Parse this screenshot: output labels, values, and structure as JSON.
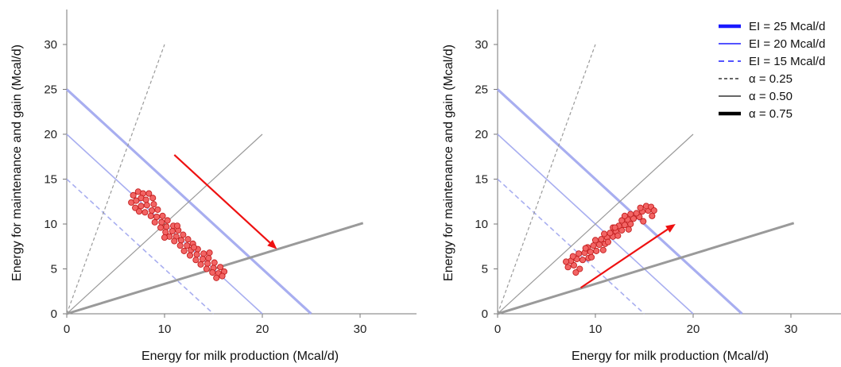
{
  "chart_data": [
    {
      "type": "scatter",
      "title": "",
      "xlabel": "Energy for milk production (Mcal/d)",
      "ylabel": "Energy for maintenance and gain (Mcal/d)",
      "xlim": [
        0,
        35
      ],
      "ylim": [
        0,
        33
      ],
      "xticks": [
        "0",
        "10",
        "20",
        "30"
      ],
      "yticks": [
        "0",
        "5",
        "10",
        "15",
        "20",
        "25",
        "30"
      ],
      "grid": false,
      "iso_energy_lines": [
        {
          "name": "EI = 25 Mcal/d",
          "intercept": 25,
          "style": "thick"
        },
        {
          "name": "EI = 20 Mcal/d",
          "intercept": 20,
          "style": "solid"
        },
        {
          "name": "EI = 15 Mcal/d",
          "intercept": 15,
          "style": "dashed"
        }
      ],
      "partition_lines": [
        {
          "name": "α = 0.25",
          "ratio": 0.25,
          "x_end": 10,
          "style": "dashed"
        },
        {
          "name": "α = 0.50",
          "ratio": 0.5,
          "x_end": 20,
          "style": "solid"
        },
        {
          "name": "α = 0.75",
          "ratio": 0.75,
          "x_end": 30.3,
          "style": "thick"
        }
      ],
      "arrow": {
        "from": [
          11,
          17.7
        ],
        "to": [
          21.5,
          7.2
        ],
        "color": "#ee1111"
      },
      "series": [
        {
          "values": [
            [
              6.8,
              13.2
            ],
            [
              7.3,
              13.6
            ],
            [
              7.8,
              13.4
            ],
            [
              8.4,
              13.4
            ],
            [
              6.6,
              12.4
            ],
            [
              7.1,
              12.6
            ],
            [
              7.6,
              12.9
            ],
            [
              8.1,
              12.7
            ],
            [
              8.8,
              12.9
            ],
            [
              7.0,
              11.8
            ],
            [
              7.6,
              12.0
            ],
            [
              8.2,
              12.1
            ],
            [
              8.9,
              12.2
            ],
            [
              7.4,
              11.4
            ],
            [
              8.0,
              11.3
            ],
            [
              8.7,
              11.5
            ],
            [
              9.3,
              11.6
            ],
            [
              8.6,
              10.9
            ],
            [
              9.2,
              10.8
            ],
            [
              9.8,
              10.9
            ],
            [
              9.0,
              10.2
            ],
            [
              9.7,
              10.2
            ],
            [
              10.3,
              10.4
            ],
            [
              9.6,
              9.6
            ],
            [
              10.2,
              9.7
            ],
            [
              10.9,
              9.8
            ],
            [
              10.1,
              9.1
            ],
            [
              10.8,
              9.2
            ],
            [
              11.4,
              9.3
            ],
            [
              10.5,
              8.6
            ],
            [
              11.2,
              8.6
            ],
            [
              11.9,
              8.8
            ],
            [
              11.0,
              8.1
            ],
            [
              11.7,
              8.2
            ],
            [
              12.4,
              8.3
            ],
            [
              11.6,
              7.6
            ],
            [
              12.3,
              7.6
            ],
            [
              12.9,
              7.8
            ],
            [
              12.0,
              7.0
            ],
            [
              12.7,
              7.1
            ],
            [
              13.4,
              7.2
            ],
            [
              12.6,
              6.5
            ],
            [
              13.3,
              6.6
            ],
            [
              14.0,
              6.7
            ],
            [
              13.2,
              6.0
            ],
            [
              13.9,
              6.1
            ],
            [
              14.5,
              6.2
            ],
            [
              13.7,
              5.5
            ],
            [
              14.4,
              5.6
            ],
            [
              15.1,
              5.7
            ],
            [
              14.3,
              5.0
            ],
            [
              15.0,
              5.1
            ],
            [
              15.7,
              5.2
            ],
            [
              14.9,
              4.6
            ],
            [
              15.5,
              4.5
            ],
            [
              16.1,
              4.7
            ],
            [
              15.3,
              4.0
            ],
            [
              15.9,
              4.2
            ],
            [
              13.0,
              7.4
            ],
            [
              14.6,
              6.8
            ],
            [
              11.3,
              9.8
            ],
            [
              10.0,
              8.5
            ]
          ]
        }
      ]
    },
    {
      "type": "scatter",
      "title": "",
      "xlabel": "Energy for milk production (Mcal/d)",
      "ylabel": "Energy for maintenance and gain (Mcal/d)",
      "xlim": [
        0,
        35
      ],
      "ylim": [
        0,
        33
      ],
      "xticks": [
        "0",
        "10",
        "20",
        "30"
      ],
      "yticks": [
        "0",
        "5",
        "10",
        "15",
        "20",
        "25",
        "30"
      ],
      "grid": false,
      "legend_position": "top-right",
      "legend": [
        {
          "label": "EI = 25 Mcal/d",
          "color": "#1a1aff",
          "style": "thick"
        },
        {
          "label": "EI = 20 Mcal/d",
          "color": "#1a1aff",
          "style": "solid"
        },
        {
          "label": "EI = 15 Mcal/d",
          "color": "#1a1aff",
          "style": "dashed"
        },
        {
          "label": "α = 0.25",
          "color": "#333333",
          "style": "dashed"
        },
        {
          "label": "α = 0.50",
          "color": "#333333",
          "style": "solid"
        },
        {
          "label": "α = 0.75",
          "color": "#000000",
          "style": "thick"
        }
      ],
      "iso_energy_lines": [
        {
          "name": "EI = 25 Mcal/d",
          "intercept": 25,
          "style": "thick"
        },
        {
          "name": "EI = 20 Mcal/d",
          "intercept": 20,
          "style": "solid"
        },
        {
          "name": "EI = 15 Mcal/d",
          "intercept": 15,
          "style": "dashed"
        }
      ],
      "partition_lines": [
        {
          "name": "α = 0.25",
          "ratio": 0.25,
          "x_end": 10,
          "style": "dashed"
        },
        {
          "name": "α = 0.50",
          "ratio": 0.5,
          "x_end": 20,
          "style": "solid"
        },
        {
          "name": "α = 0.75",
          "ratio": 0.75,
          "x_end": 30.3,
          "style": "thick"
        }
      ],
      "arrow": {
        "from": [
          8.5,
          2.9
        ],
        "to": [
          18.2,
          10.0
        ],
        "color": "#ee1111"
      },
      "series": [
        {
          "values": [
            [
              7.2,
              5.2
            ],
            [
              7.8,
              5.4
            ],
            [
              8.4,
              5.0
            ],
            [
              7.5,
              5.9
            ],
            [
              8.1,
              6.1
            ],
            [
              8.7,
              6.0
            ],
            [
              9.3,
              6.2
            ],
            [
              8.3,
              6.7
            ],
            [
              8.9,
              6.8
            ],
            [
              9.5,
              6.9
            ],
            [
              10.1,
              7.0
            ],
            [
              9.2,
              7.4
            ],
            [
              9.8,
              7.6
            ],
            [
              10.4,
              7.7
            ],
            [
              11.0,
              7.8
            ],
            [
              10.0,
              8.2
            ],
            [
              10.6,
              8.3
            ],
            [
              11.2,
              8.5
            ],
            [
              11.8,
              8.6
            ],
            [
              10.9,
              8.9
            ],
            [
              11.5,
              9.0
            ],
            [
              12.1,
              9.2
            ],
            [
              12.7,
              9.3
            ],
            [
              11.8,
              9.6
            ],
            [
              12.4,
              9.8
            ],
            [
              13.0,
              9.9
            ],
            [
              13.6,
              10.0
            ],
            [
              12.7,
              10.4
            ],
            [
              13.3,
              10.5
            ],
            [
              13.9,
              10.6
            ],
            [
              14.5,
              10.8
            ],
            [
              13.6,
              11.1
            ],
            [
              14.2,
              11.2
            ],
            [
              14.8,
              11.4
            ],
            [
              15.4,
              11.5
            ],
            [
              14.6,
              11.8
            ],
            [
              15.2,
              12.0
            ],
            [
              15.7,
              11.9
            ],
            [
              7.0,
              5.8
            ],
            [
              8.0,
              4.6
            ],
            [
              9.6,
              6.3
            ],
            [
              10.8,
              7.1
            ],
            [
              12.3,
              8.7
            ],
            [
              13.4,
              9.4
            ],
            [
              14.9,
              10.3
            ],
            [
              15.8,
              10.9
            ],
            [
              16.0,
              11.5
            ],
            [
              11.3,
              8.0
            ],
            [
              9.0,
              7.3
            ],
            [
              12.0,
              9.6
            ],
            [
              7.7,
              6.4
            ],
            [
              13.0,
              10.9
            ]
          ]
        }
      ]
    }
  ]
}
